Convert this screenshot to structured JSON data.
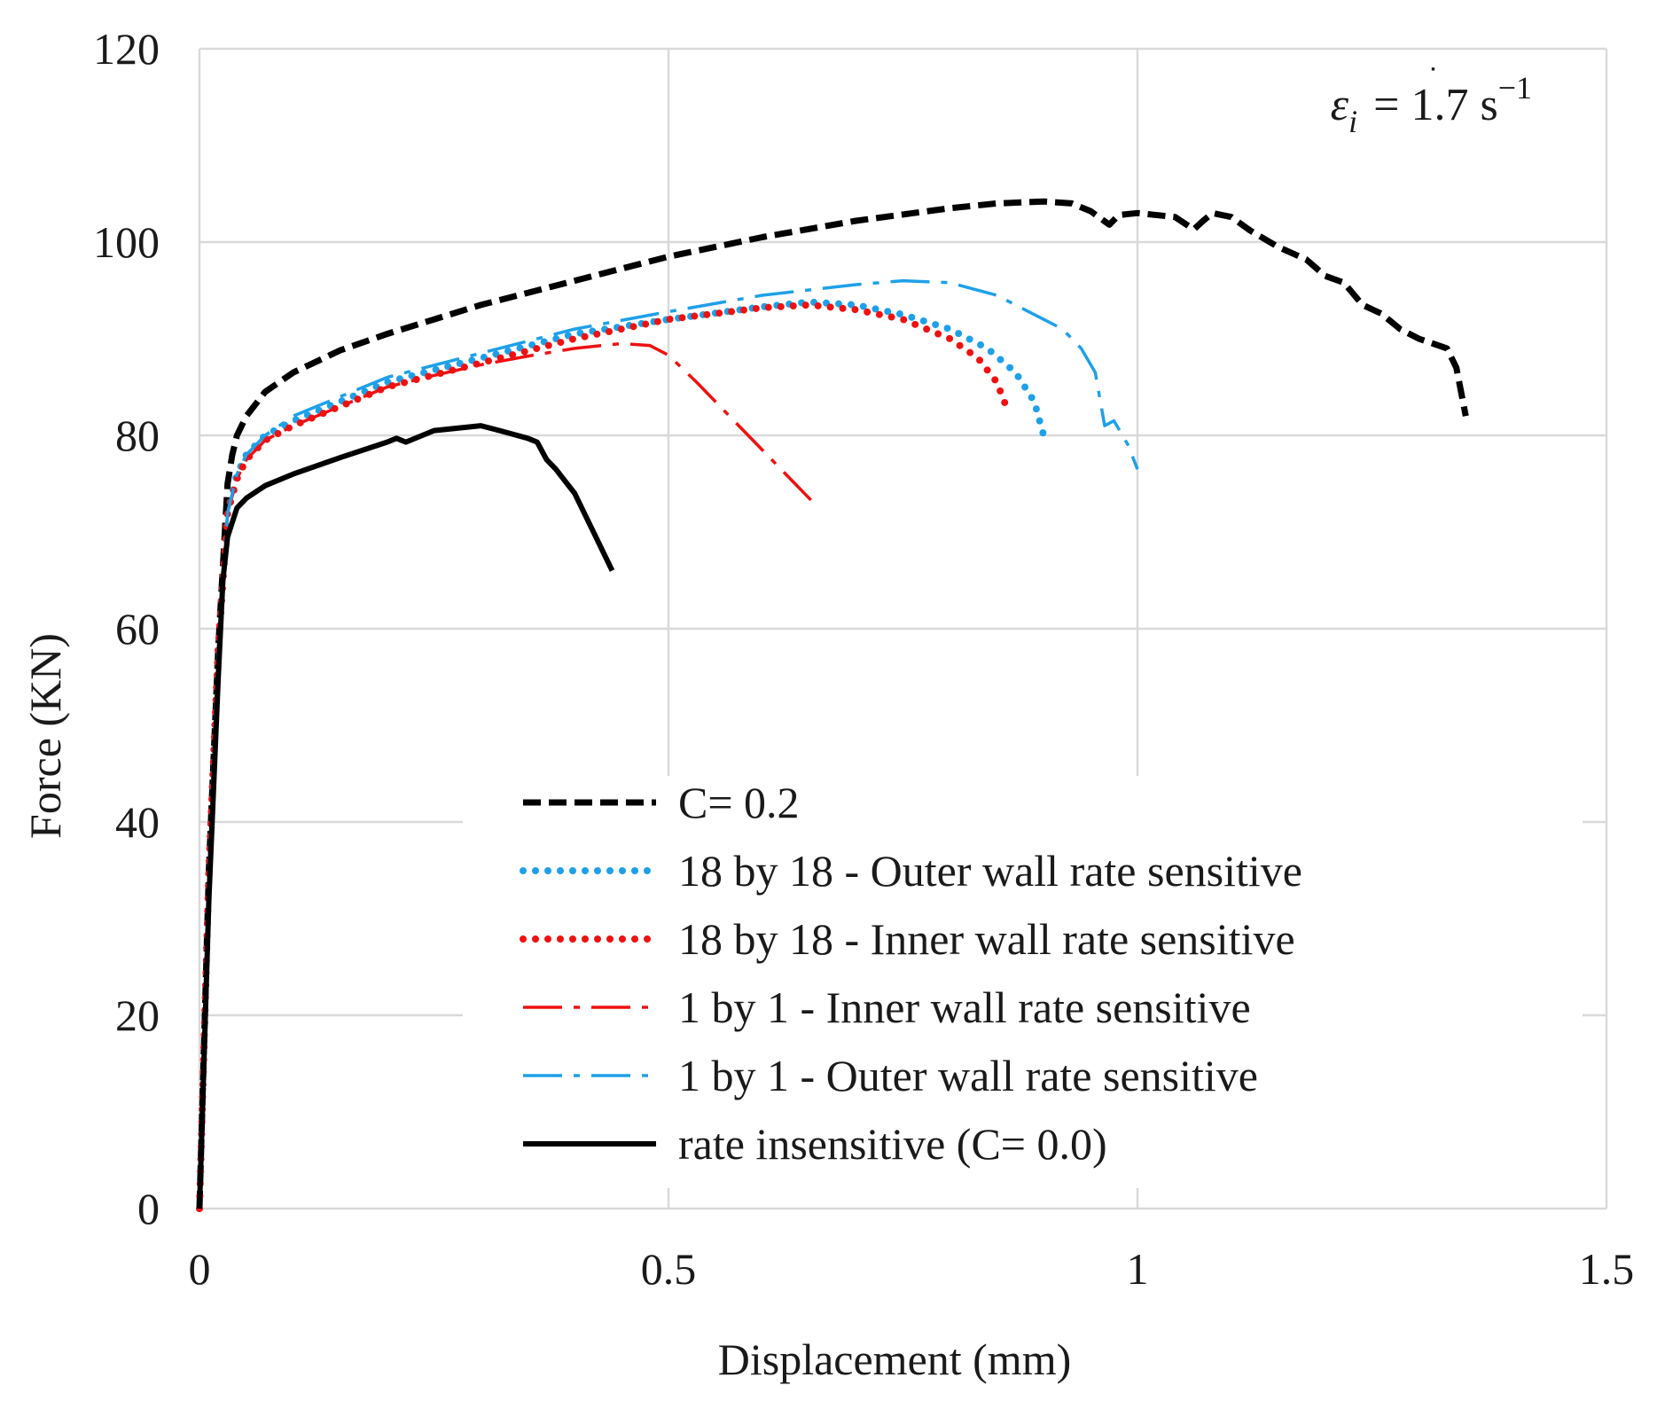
{
  "chart_data": {
    "type": "line",
    "title": "",
    "xlabel": "Displacement (mm)",
    "ylabel": "Force (KN)",
    "xlim": [
      0,
      1.5
    ],
    "ylim": [
      0,
      120
    ],
    "xticks": [
      "0",
      "0.5",
      "1",
      "1.5"
    ],
    "yticks": [
      "0",
      "20",
      "40",
      "60",
      "80",
      "100",
      "120"
    ],
    "grid": true,
    "legend_position": "bottom-right",
    "annotation": {
      "symbol": "ε",
      "subscript": "i",
      "equals": "= 1.7 s",
      "superscript": "−1"
    },
    "series": [
      {
        "name": "C= 0.2",
        "color": "#000000",
        "style": "dashed",
        "x": [
          0,
          0.01,
          0.02,
          0.03,
          0.035,
          0.04,
          0.05,
          0.07,
          0.1,
          0.15,
          0.2,
          0.3,
          0.4,
          0.5,
          0.6,
          0.7,
          0.8,
          0.85,
          0.9,
          0.93,
          0.95,
          0.96,
          0.97,
          0.98,
          1.0,
          1.04,
          1.06,
          1.07,
          1.08,
          1.1,
          1.12,
          1.15,
          1.18,
          1.2,
          1.22,
          1.24,
          1.26,
          1.28,
          1.3,
          1.33,
          1.34,
          1.35
        ],
        "y": [
          0,
          35,
          58,
          75,
          78,
          80,
          82,
          84.5,
          86.5,
          88.8,
          90.5,
          93.5,
          96,
          98.5,
          100.5,
          102.2,
          103.5,
          104,
          104.2,
          104,
          103.2,
          102.5,
          101.8,
          102.8,
          103,
          102.6,
          101.3,
          102.2,
          103,
          102.6,
          101.2,
          99.5,
          98.2,
          96.5,
          95.8,
          93.5,
          92.6,
          91,
          90,
          89,
          87,
          82
        ]
      },
      {
        "name": "18 by 18 - Outer wall rate sensitive",
        "color": "#1ea0e8",
        "style": "dotted",
        "x": [
          0,
          0.01,
          0.02,
          0.03,
          0.04,
          0.05,
          0.07,
          0.1,
          0.15,
          0.2,
          0.3,
          0.4,
          0.5,
          0.6,
          0.65,
          0.7,
          0.75,
          0.8,
          0.84,
          0.87,
          0.89,
          0.9
        ],
        "y": [
          0,
          35,
          58,
          72,
          76,
          78,
          80,
          81.5,
          83.5,
          85.5,
          88,
          90.5,
          92,
          93.3,
          93.8,
          93.5,
          92.5,
          91,
          89,
          86.5,
          83.5,
          80
        ]
      },
      {
        "name": "18 by 18 - Inner wall rate sensitive",
        "color": "#ee1111",
        "style": "dotted",
        "x": [
          0,
          0.01,
          0.02,
          0.03,
          0.04,
          0.05,
          0.07,
          0.1,
          0.15,
          0.2,
          0.3,
          0.4,
          0.5,
          0.6,
          0.65,
          0.7,
          0.75,
          0.8,
          0.83,
          0.85,
          0.86
        ],
        "y": [
          0,
          35,
          58,
          72,
          75.5,
          77.5,
          79.5,
          81,
          83,
          85,
          87.5,
          90,
          92,
          93.2,
          93.5,
          93,
          92,
          90,
          88,
          85.5,
          83
        ]
      },
      {
        "name": "1 by 1 - Inner wall rate sensitive",
        "color": "#ee1111",
        "style": "dashdot",
        "x": [
          0,
          0.01,
          0.02,
          0.03,
          0.04,
          0.05,
          0.07,
          0.1,
          0.15,
          0.2,
          0.25,
          0.3,
          0.35,
          0.4,
          0.45,
          0.48,
          0.5,
          0.53,
          0.56,
          0.6,
          0.63,
          0.66
        ],
        "y": [
          0,
          35,
          58,
          72,
          75.5,
          77.5,
          79.5,
          81,
          83,
          85,
          86.2,
          87.3,
          88.2,
          89,
          89.5,
          89.3,
          88.3,
          85.5,
          82.5,
          78.5,
          75.5,
          72.5
        ]
      },
      {
        "name": "1 by 1 - Outer wall rate sensitive",
        "color": "#1ea0e8",
        "style": "dashdot",
        "x": [
          0,
          0.01,
          0.02,
          0.03,
          0.04,
          0.05,
          0.07,
          0.1,
          0.15,
          0.2,
          0.3,
          0.4,
          0.5,
          0.6,
          0.7,
          0.75,
          0.8,
          0.85,
          0.88,
          0.92,
          0.94,
          0.955,
          0.965,
          0.975,
          0.99,
          1.0
        ],
        "y": [
          0,
          35,
          58,
          72,
          76,
          78,
          80,
          82,
          84,
          86,
          88.5,
          91,
          92.8,
          94.5,
          95.6,
          96,
          95.8,
          94.5,
          93,
          91,
          89,
          86.5,
          81,
          81.5,
          79,
          76.5
        ]
      },
      {
        "name": "rate insensitive (C= 0.0)",
        "color": "#000000",
        "style": "solid",
        "x": [
          0,
          0.01,
          0.02,
          0.025,
          0.03,
          0.035,
          0.04,
          0.05,
          0.07,
          0.1,
          0.15,
          0.2,
          0.21,
          0.22,
          0.25,
          0.3,
          0.32,
          0.35,
          0.36,
          0.37,
          0.38,
          0.4,
          0.42,
          0.44
        ],
        "y": [
          0,
          32,
          55,
          65,
          69.5,
          71,
          72.5,
          73.5,
          74.8,
          76,
          77.7,
          79.3,
          79.7,
          79.3,
          80.5,
          81,
          80.5,
          79.7,
          79.3,
          77.5,
          76.5,
          74,
          70,
          66
        ]
      }
    ]
  }
}
